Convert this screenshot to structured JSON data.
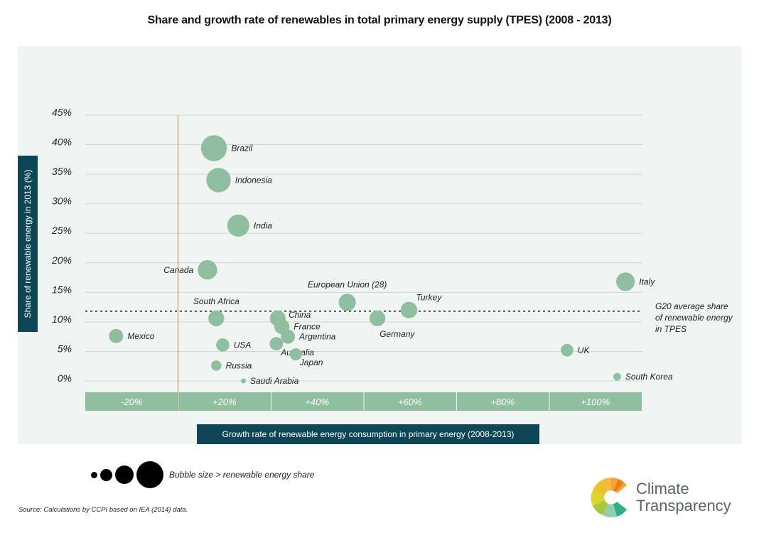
{
  "title": "Share and growth rate of renewables in total primary energy supply (TPES) (2008 - 2013)",
  "chart_data": {
    "type": "scatter",
    "subtype": "bubble",
    "title": "Share and growth rate of renewables in total primary energy supply (TPES) (2008 - 2013)",
    "xlabel": "Growth rate of renewable energy consumption in primary energy (2008-2013)",
    "ylabel": "Share of renewable energy in 2013 (%)",
    "x_tick_labels": [
      "-20%",
      "+20%",
      "+40%",
      "+60%",
      "+80%",
      "+100%"
    ],
    "x_ticks": [
      -20,
      20,
      40,
      60,
      80,
      100
    ],
    "y_tick_labels": [
      "45%",
      "40%",
      "35%",
      "30%",
      "25%",
      "20%",
      "15%",
      "10%",
      "5%",
      "0%"
    ],
    "y_ticks": [
      45,
      40,
      35,
      30,
      25,
      20,
      15,
      10,
      5,
      0
    ],
    "ylim": [
      0,
      45
    ],
    "grid": true,
    "reference_line": {
      "y": 11.8,
      "label": [
        "G20 average share",
        "of renewable energy",
        "in TPES"
      ],
      "style": "dashed"
    },
    "size_legend": "Bubble size  > renewable energy share",
    "points": [
      {
        "name": "Brazil",
        "x": 15.5,
        "y": 39.4,
        "size": 39.4
      },
      {
        "name": "Indonesia",
        "x": 17.5,
        "y": 34.0,
        "size": 34.0
      },
      {
        "name": "India",
        "x": 23.0,
        "y": 26.3,
        "size": 26.3
      },
      {
        "name": "Canada",
        "x": 12.7,
        "y": 18.8,
        "size": 18.8
      },
      {
        "name": "Italy",
        "x": 106.5,
        "y": 16.8,
        "size": 16.8
      },
      {
        "name": "European Union (28)",
        "x": 46.5,
        "y": 13.3,
        "size": 13.3
      },
      {
        "name": "Turkey",
        "x": 59.8,
        "y": 12.0,
        "size": 12.0
      },
      {
        "name": "South Africa",
        "x": 16.5,
        "y": 10.6,
        "size": 10.6
      },
      {
        "name": "China",
        "x": 31.5,
        "y": 10.6,
        "size": 10.6
      },
      {
        "name": "Germany",
        "x": 53.0,
        "y": 10.6,
        "size": 10.6
      },
      {
        "name": "France",
        "x": 32.4,
        "y": 9.2,
        "size": 9.2
      },
      {
        "name": "Mexico",
        "x": -26.7,
        "y": 7.6,
        "size": 7.6
      },
      {
        "name": "Argentina",
        "x": 33.7,
        "y": 7.5,
        "size": 7.5
      },
      {
        "name": "Australia",
        "x": 31.2,
        "y": 6.3,
        "size": 6.3
      },
      {
        "name": "USA",
        "x": 19.3,
        "y": 6.1,
        "size": 6.1
      },
      {
        "name": "UK",
        "x": 93.9,
        "y": 5.2,
        "size": 5.2
      },
      {
        "name": "Japan",
        "x": 35.4,
        "y": 4.5,
        "size": 4.5
      },
      {
        "name": "Russia",
        "x": 16.5,
        "y": 2.6,
        "size": 2.6
      },
      {
        "name": "South Korea",
        "x": 104.7,
        "y": 0.7,
        "size": 0.7
      },
      {
        "name": "Saudi Arabia",
        "x": 24.1,
        "y": 0.0,
        "size": 0.0
      }
    ]
  },
  "labels_pos": {
    "Brazil": "right",
    "Indonesia": "right",
    "India": "right",
    "Canada": "left",
    "Italy": "right",
    "European Union (28)": "above",
    "Turkey": "above-right",
    "South Africa": "above",
    "China": "right-up",
    "Germany": "below",
    "France": "right",
    "Mexico": "right",
    "Argentina": "right",
    "Australia": "right-down",
    "USA": "right",
    "UK": "right",
    "Japan": "right-down",
    "Russia": "right",
    "South Korea": "right",
    "Saudi Arabia": "right"
  },
  "source": "Source: Calculations by CCPI based on IEA (2014) data.",
  "logo": {
    "line1": "Climate",
    "line2": "Transparency"
  },
  "colors": {
    "bubble": "#8fbf9e",
    "axis_box": "#0f4655",
    "band": "#8fbf9e",
    "panel": "#f0f5f4",
    "grid": "#cfd6d4",
    "zero_line": "#9b8a74"
  }
}
